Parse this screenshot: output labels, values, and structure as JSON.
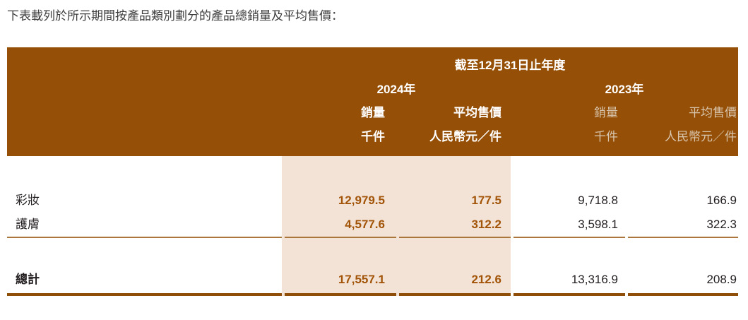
{
  "intro": "下表載列於所示期間按產品類別劃分的產品總銷量及平均售價：",
  "table": {
    "period_header": "截至12月31日止年度",
    "groups": [
      {
        "year": "2024年",
        "volume_header": "銷量",
        "asp_header": "平均售價",
        "volume_unit": "千件",
        "asp_unit": "人民幣元／件"
      },
      {
        "year": "2023年",
        "volume_header": "銷量",
        "asp_header": "平均售價",
        "volume_unit": "千件",
        "asp_unit": "人民幣元／件"
      }
    ],
    "rows": [
      {
        "label": "彩妝",
        "values": [
          "12,979.5",
          "177.5",
          "9,718.8",
          "166.9"
        ]
      },
      {
        "label": "護膚",
        "values": [
          "4,577.6",
          "312.2",
          "3,598.1",
          "322.3"
        ]
      }
    ],
    "total": {
      "label": "總計",
      "values": [
        "17,557.1",
        "212.6",
        "13,316.9",
        "208.9"
      ]
    },
    "colors": {
      "header_bg": "#954F06",
      "highlight_bg": "#F2E3D6",
      "accent_number": "#A25408",
      "thin_rule": "#AA763B",
      "thick_rule": "#8F4E07",
      "muted_header_text": "#D9C6AF",
      "body_text": "#231F20"
    }
  }
}
